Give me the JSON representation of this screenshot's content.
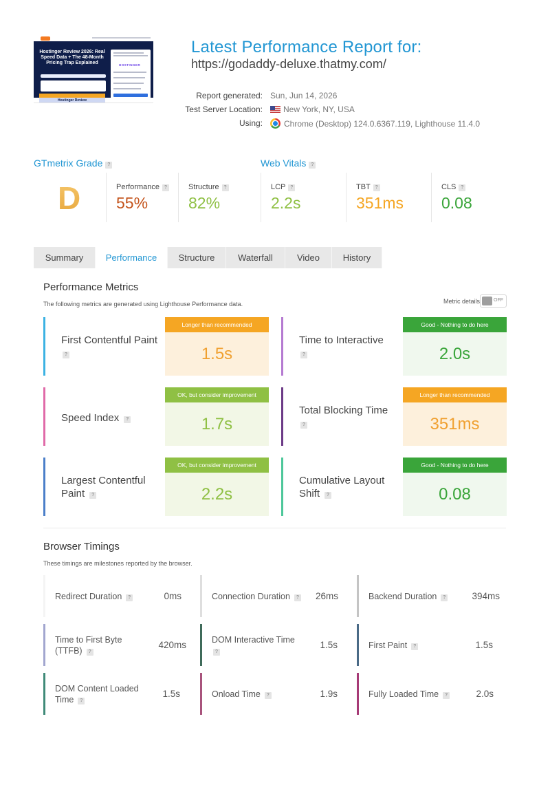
{
  "screenshot": {
    "hero_title": "Hostinger Review 2026: Real Speed Data + The 48-Month Pricing Trap Explained",
    "card_brand": "HOSTINGER",
    "banner_text": "Hostinger Review"
  },
  "header": {
    "title": "Latest Performance Report for:",
    "url": "https://godaddy-deluxe.thatmy.com/",
    "report_generated_label": "Report generated:",
    "report_generated_value": "Sun, Jun 14, 2026",
    "server_location_label": "Test Server Location:",
    "server_location_value": "New York, NY, USA",
    "using_label": "Using:",
    "using_value": "Chrome (Desktop) 124.0.6367.119, Lighthouse 11.4.0"
  },
  "grade": {
    "heading": "GTmetrix Grade",
    "letter": "D",
    "performance_label": "Performance",
    "performance_value": "55%",
    "structure_label": "Structure",
    "structure_value": "82%"
  },
  "web_vitals": {
    "heading": "Web Vitals",
    "lcp_label": "LCP",
    "lcp_value": "2.2s",
    "tbt_label": "TBT",
    "tbt_value": "351ms",
    "cls_label": "CLS",
    "cls_value": "0.08"
  },
  "tabs": [
    {
      "label": "Summary",
      "active": false
    },
    {
      "label": "Performance",
      "active": true
    },
    {
      "label": "Structure",
      "active": false
    },
    {
      "label": "Waterfall",
      "active": false
    },
    {
      "label": "Video",
      "active": false
    },
    {
      "label": "History",
      "active": false
    }
  ],
  "performance_metrics": {
    "heading": "Performance Metrics",
    "description": "The following metrics are generated using Lighthouse Performance data.",
    "details_label": "Metric details",
    "toggle_state": "OFF",
    "items": [
      {
        "name": "First Contentful Paint",
        "badge": "Longer than recommended",
        "value": "1.5s"
      },
      {
        "name": "Time to Interactive",
        "badge": "Good - Nothing to do here",
        "value": "2.0s"
      },
      {
        "name": "Speed Index",
        "badge": "OK, but consider improvement",
        "value": "1.7s"
      },
      {
        "name": "Total Blocking Time",
        "badge": "Longer than recommended",
        "value": "351ms"
      },
      {
        "name": "Largest Contentful Paint",
        "badge": "OK, but consider improvement",
        "value": "2.2s"
      },
      {
        "name": "Cumulative Layout Shift",
        "badge": "Good - Nothing to do here",
        "value": "0.08"
      }
    ]
  },
  "browser_timings": {
    "heading": "Browser Timings",
    "description": "These timings are milestones reported by the browser.",
    "items": [
      {
        "name": "Redirect Duration",
        "value": "0ms"
      },
      {
        "name": "Connection Duration",
        "value": "26ms"
      },
      {
        "name": "Backend Duration",
        "value": "394ms"
      },
      {
        "name": "Time to First Byte (TTFB)",
        "value": "420ms"
      },
      {
        "name": "DOM Interactive Time",
        "value": "1.5s"
      },
      {
        "name": "First Paint",
        "value": "1.5s"
      },
      {
        "name": "DOM Content Loaded Time",
        "value": "1.5s"
      },
      {
        "name": "Onload Time",
        "value": "1.9s"
      },
      {
        "name": "Fully Loaded Time",
        "value": "2.0s"
      }
    ]
  },
  "colors": {
    "brand_blue": "#2196d3",
    "grade_d": "#e7a53a",
    "performance_red": "#c4541c",
    "good_green": "#3aa53a",
    "ok_green": "#8fc044",
    "warn_orange": "#f5a623",
    "good_bg": "#f0f8ee",
    "ok_bg": "#f2f7e6",
    "warn_bg": "#fdf0dc"
  }
}
